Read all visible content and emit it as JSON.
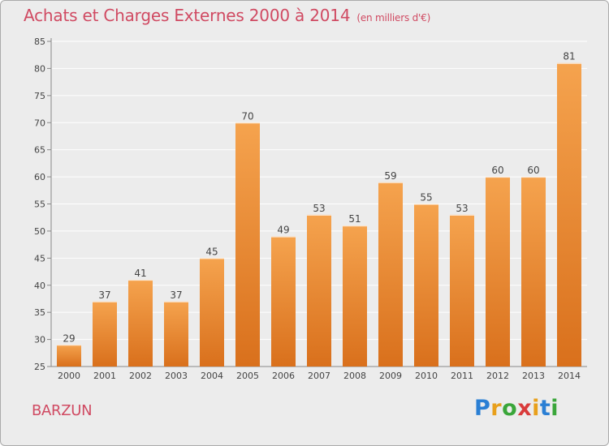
{
  "title": "Achats et Charges Externes 2000 à 2014",
  "unit_note": "(en milliers d'€)",
  "place_name": "BARZUN",
  "logo": {
    "text": "Proxiti",
    "letter_colors": [
      "#2a7fd4",
      "#e8a01c",
      "#3aa63a",
      "#d93b3b",
      "#e8a01c",
      "#2a7fd4",
      "#3aa63a"
    ]
  },
  "colors": {
    "bar_light": "#f5a34e",
    "bar_dark": "#d9701c",
    "title": "#d04a62",
    "grid": "#ffffff",
    "text": "#444444"
  },
  "chart_data": {
    "type": "bar",
    "categories": [
      "2000",
      "2001",
      "2002",
      "2003",
      "2004",
      "2005",
      "2006",
      "2007",
      "2008",
      "2009",
      "2010",
      "2011",
      "2012",
      "2013",
      "2014"
    ],
    "values": [
      29,
      37,
      41,
      37,
      45,
      70,
      49,
      53,
      51,
      59,
      55,
      53,
      60,
      60,
      81
    ],
    "title": "Achats et Charges Externes 2000 à 2014",
    "xlabel": "",
    "ylabel": "",
    "ylim": [
      25,
      85
    ],
    "yticks": [
      25,
      30,
      35,
      40,
      45,
      50,
      55,
      60,
      65,
      70,
      75,
      80,
      85
    ],
    "grid": true,
    "data_labels": true
  }
}
